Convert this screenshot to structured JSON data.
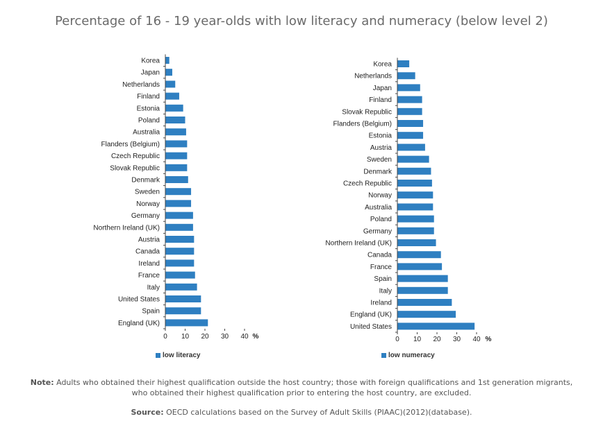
{
  "title": "Percentage of 16 - 19 year-olds with low literacy and numeracy (below level 2)",
  "colors": {
    "bar": "#2e7fc1",
    "axis": "#444444"
  },
  "chart_data": [
    {
      "type": "bar",
      "orientation": "horizontal",
      "categories": [
        "Korea",
        "Japan",
        "Netherlands",
        "Finland",
        "Estonia",
        "Poland",
        "Australia",
        "Flanders (Belgium)",
        "Czech Republic",
        "Slovak Republic",
        "Denmark",
        "Sweden",
        "Norway",
        "Germany",
        "Northern Ireland (UK)",
        "Austria",
        "Canada",
        "Ireland",
        "France",
        "Italy",
        "United States",
        "Spain",
        "England (UK)"
      ],
      "series": [
        {
          "name": "low literacy",
          "values": [
            2,
            3.5,
            5,
            7,
            9,
            10,
            10.5,
            11,
            11,
            11,
            11.5,
            13,
            13,
            14,
            14,
            14.5,
            14.5,
            14.5,
            15,
            16,
            18,
            18,
            21.5
          ]
        }
      ],
      "xlim": [
        0,
        40
      ],
      "xticks": [
        0,
        10,
        20,
        30,
        40
      ],
      "unit": "%",
      "legend": "bottom-left"
    },
    {
      "type": "bar",
      "orientation": "horizontal",
      "categories": [
        "Korea",
        "Netherlands",
        "Japan",
        "Finland",
        "Slovak Republic",
        "Flanders (Belgium)",
        "Estonia",
        "Austria",
        "Sweden",
        "Denmark",
        "Czech Republic",
        "Norway",
        "Australia",
        "Poland",
        "Germany",
        "Northern Ireland (UK)",
        "Canada",
        "France",
        "Spain",
        "Italy",
        "Ireland",
        "England (UK)",
        "United States"
      ],
      "series": [
        {
          "name": "low numeracy",
          "values": [
            6,
            9,
            11.5,
            12.5,
            12.5,
            13,
            13,
            14,
            16,
            17,
            17.5,
            18,
            18,
            18.5,
            18.5,
            19.5,
            22,
            22.5,
            25.5,
            25.5,
            27.5,
            29.5,
            39
          ]
        }
      ],
      "xlim": [
        0,
        40
      ],
      "xticks": [
        0,
        10,
        20,
        30,
        40
      ],
      "unit": "%",
      "legend": "bottom-left"
    }
  ],
  "notes": {
    "note_label": "Note:",
    "note_text": " Adults who obtained their highest qualification outside the host country; those with foreign qualifications and 1st generation migrants, who obtained their highest qualification prior to entering the host country, are excluded.",
    "source_label": "Source:",
    "source_text": " OECD calculations based on the Survey of Adult Skills (PIAAC)(2012)(database)."
  }
}
